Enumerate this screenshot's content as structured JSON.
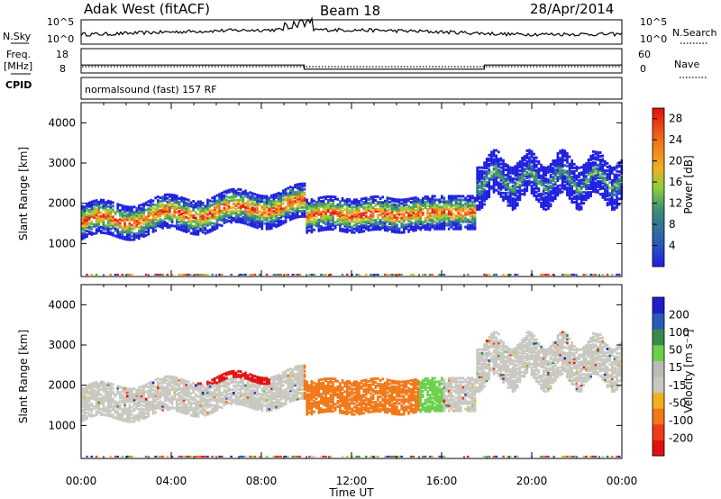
{
  "header": {
    "station": "Adak West (fitACF)",
    "beam": "Beam 18",
    "date": "28/Apr/2014"
  },
  "summary_panel": {
    "nsky_label": "N.Sky",
    "nsky_ticks": [
      "10^5",
      "10^0"
    ],
    "nsearch_label": "N.Search",
    "nsearch_ticks": [
      "10^5",
      "10^0"
    ],
    "freq_label": "Freq.",
    "freq_unit": "[MHz]",
    "freq_ticks": [
      "18",
      "8"
    ],
    "nave_label": "Nave",
    "nave_ticks": [
      "60",
      "0"
    ],
    "cpid_label": "CPID",
    "cpid_value": "normalsound (fast) 157 RF"
  },
  "colors": {
    "power": [
      "#1f1fe0",
      "#2a5ab8",
      "#3b8a78",
      "#4daa55",
      "#8fce3a",
      "#f0b020",
      "#f07818",
      "#e8301c",
      "#e01010"
    ],
    "velocity": [
      "#e01010",
      "#ef3a1a",
      "#f07818",
      "#f0b020",
      "#c8c8c0",
      "#b8bcb8",
      "#6ad04a",
      "#3a8a4a",
      "#2a5ab8",
      "#1f1fc8"
    ]
  },
  "chart_data": [
    {
      "type": "heatmap",
      "title": "Power",
      "ylabel": "Slant Range [km]",
      "ylim": [
        180,
        4500
      ],
      "y_ticks": [
        "4000",
        "3000",
        "2000",
        "1000"
      ],
      "x_ticks": [
        "00:00",
        "04:00",
        "08:00",
        "12:00",
        "16:00",
        "20:00",
        "00:00"
      ],
      "xlim_hours": [
        0,
        24
      ],
      "colorbar": {
        "label": "Power [dB]",
        "ticks": [
          "28",
          "24",
          "20",
          "16",
          "12",
          "8",
          "4"
        ],
        "range": [
          0,
          30
        ]
      }
    },
    {
      "type": "heatmap",
      "title": "Velocity",
      "ylabel": "Slant Range [km]",
      "ylim": [
        180,
        4500
      ],
      "y_ticks": [
        "4000",
        "3000",
        "2000",
        "1000"
      ],
      "x_ticks": [
        "00:00",
        "04:00",
        "08:00",
        "12:00",
        "16:00",
        "20:00",
        "00:00"
      ],
      "xlabel": "Time UT",
      "xlim_hours": [
        0,
        24
      ],
      "colorbar": {
        "label": "Velocity [m s⁻¹]",
        "ticks": [
          "200",
          "100",
          "50",
          "15",
          "-15",
          "-50",
          "-100",
          "-200"
        ],
        "range": [
          -250,
          250
        ]
      }
    }
  ],
  "frequency_series": {
    "segments": [
      {
        "start_hours": 0,
        "end_hours": 9.9,
        "mhz": 12.0
      },
      {
        "start_hours": 9.9,
        "end_hours": 17.9,
        "mhz": 10.3
      },
      {
        "start_hours": 17.9,
        "end_hours": 24,
        "mhz": 12.0
      }
    ],
    "nave": 15
  }
}
